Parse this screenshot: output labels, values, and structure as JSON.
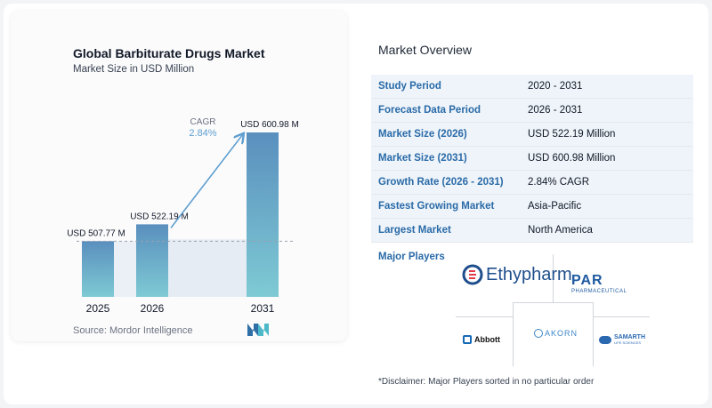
{
  "chart": {
    "title": "Global Barbiturate Drugs Market",
    "subtitle": "Market Size in USD Million",
    "source": "Source:  Mordor Intelligence",
    "cagr_label": "CAGR",
    "cagr_value": "2.84%"
  },
  "chart_data": {
    "type": "bar",
    "categories": [
      "2025",
      "2026",
      "2031"
    ],
    "values": [
      507.77,
      522.19,
      600.98
    ],
    "data_labels": [
      "USD 507.77 M",
      "USD 522.19 M",
      "USD 600.98 M"
    ],
    "title": "Global Barbiturate Drugs Market",
    "subtitle": "Market Size in USD Million",
    "grid": false,
    "colors": {
      "bar_top": "#5a8fbe",
      "bar_bottom": "#7ecad4",
      "arrow": "#5f9fd0",
      "band": "#dbe6ef"
    }
  },
  "overview": {
    "title": "Market Overview",
    "rows": [
      {
        "label": "Study Period",
        "value": "2020 - 2031"
      },
      {
        "label": "Forecast Data Period",
        "value": "2026 - 2031"
      },
      {
        "label": "Market Size (2026)",
        "value": "USD 522.19 Million"
      },
      {
        "label": "Market Size (2031)",
        "value": "USD 600.98 Million"
      },
      {
        "label": "Growth Rate (2026 - 2031)",
        "value": "2.84% CAGR"
      },
      {
        "label": "Fastest Growing Market",
        "value": "Asia-Pacific"
      },
      {
        "label": "Largest Market",
        "value": "North America"
      }
    ],
    "major_players_title": "Major Players",
    "players": [
      {
        "name": "Ethypharm",
        "icon": "ethypharm-logo"
      },
      {
        "name": "PAR",
        "subtext": "PHARMACEUTICAL",
        "icon": "par-logo"
      },
      {
        "name": "Abbott",
        "icon": "abbott-logo"
      },
      {
        "name": "AKORN",
        "icon": "akorn-logo"
      },
      {
        "name": "SAMARTH",
        "subtext": "LIFE SCIENCES",
        "icon": "samarth-logo"
      }
    ],
    "disclaimer": "*Disclaimer: Major Players sorted in no particular order"
  }
}
